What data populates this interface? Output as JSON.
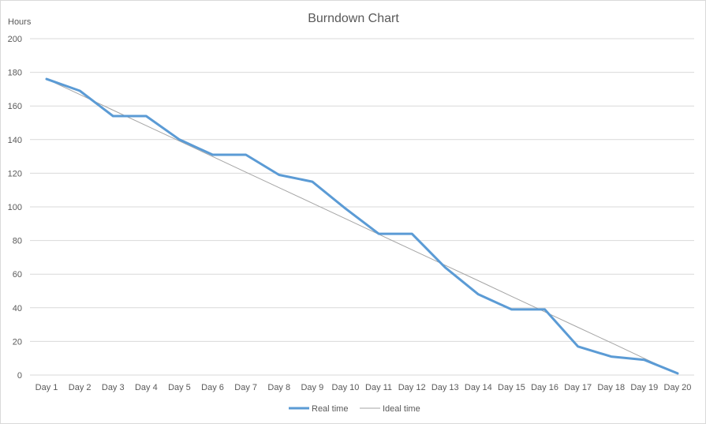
{
  "chart_data": {
    "type": "line",
    "title": "Burndown Chart",
    "ylabel": "Hours",
    "xlabel": "",
    "ylim": [
      0,
      200
    ],
    "yticks": [
      0,
      20,
      40,
      60,
      80,
      100,
      120,
      140,
      160,
      180,
      200
    ],
    "grid": true,
    "legend_position": "bottom",
    "categories": [
      "Day 1",
      "Day 2",
      "Day 3",
      "Day 4",
      "Day 5",
      "Day 6",
      "Day 7",
      "Day 8",
      "Day 9",
      "Day 10",
      "Day 11",
      "Day 12",
      "Day 13",
      "Day 14",
      "Day 15",
      "Day 16",
      "Day 17",
      "Day 18",
      "Day 19",
      "Day 20"
    ],
    "series": [
      {
        "name": "Real time",
        "color": "#5b9bd5",
        "values": [
          176,
          169,
          154,
          154,
          140,
          131,
          131,
          119,
          115,
          99,
          84,
          84,
          64,
          48,
          39,
          39,
          17,
          11,
          9,
          1
        ]
      },
      {
        "name": "Ideal time",
        "color": "#a5a5a5",
        "values": [
          176,
          166.8,
          157.5,
          148.3,
          139.1,
          129.9,
          120.6,
          111.4,
          102.2,
          93.0,
          83.7,
          74.5,
          65.3,
          56.1,
          46.8,
          37.6,
          28.4,
          19.2,
          9.9,
          0.7
        ]
      }
    ]
  }
}
